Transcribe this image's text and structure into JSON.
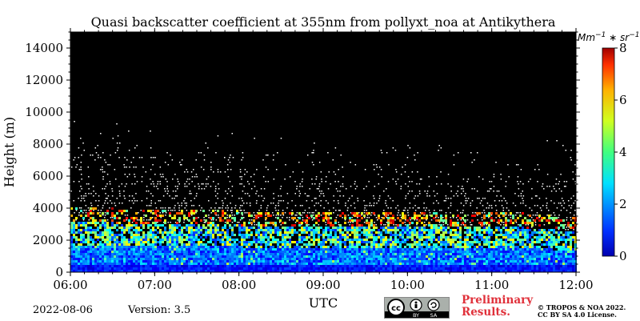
{
  "chart_data": {
    "type": "heatmap",
    "title": "Quasi backscatter coefficient at 355nm from pollyxt_noa at Antikythera",
    "xlabel": "UTC",
    "ylabel": "Height (m)",
    "x_ticks": [
      "06:00",
      "07:00",
      "08:00",
      "09:00",
      "10:00",
      "11:00",
      "12:00"
    ],
    "x_range_hours": [
      6,
      12
    ],
    "y_ticks": [
      0,
      2000,
      4000,
      6000,
      8000,
      10000,
      12000,
      14000
    ],
    "ylim": [
      0,
      15000
    ],
    "colorbar": {
      "label": "Mm^-1 * sr^-1",
      "ticks": [
        0,
        2,
        4,
        6,
        8
      ],
      "range": [
        0,
        8
      ],
      "colormap": "jet"
    },
    "background_color": "#000000",
    "description_profile": {
      "signal_top_height": [
        [
          6,
          8500
        ],
        [
          7,
          7800
        ],
        [
          8,
          7600
        ],
        [
          9,
          7000
        ],
        [
          10,
          6800
        ],
        [
          11,
          6800
        ],
        [
          12,
          7200
        ]
      ],
      "boundary_layer_top": [
        [
          6,
          3200
        ],
        [
          7,
          3100
        ],
        [
          8,
          3000
        ],
        [
          9,
          2900
        ],
        [
          10,
          2900
        ],
        [
          11,
          3000
        ],
        [
          12,
          2600
        ]
      ]
    }
  },
  "footer": {
    "date": "2022-08-06",
    "version": "Version: 3.5",
    "preliminary_line1": "Preliminary",
    "preliminary_line2": "Results.",
    "copyright_line1": "© TROPOS & NOA 2022.",
    "copyright_line2": "CC BY SA 4.0 License.",
    "license_badge": [
      "cc",
      "by",
      "sa"
    ]
  }
}
